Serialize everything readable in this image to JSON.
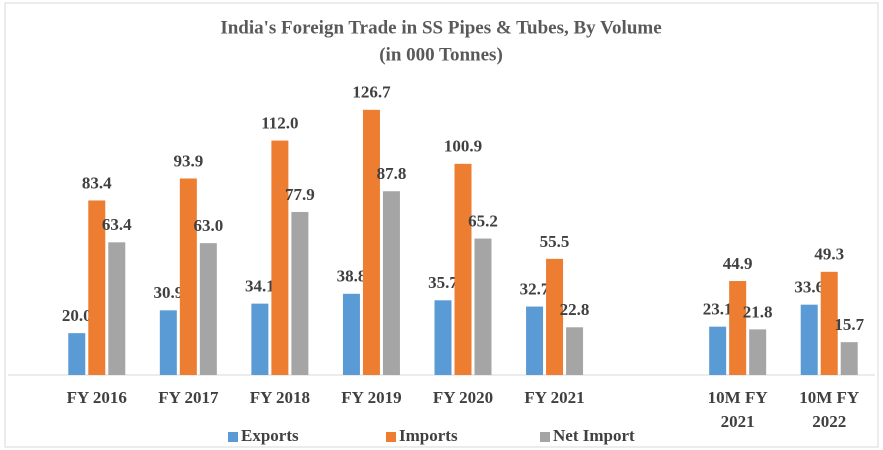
{
  "chart_data": {
    "type": "bar",
    "title": "India's Foreign Trade in SS Pipes & Tubes, By Volume",
    "subtitle": "(in 000 Tonnes)",
    "categories": [
      "FY 2016",
      "FY 2017",
      "FY 2018",
      "FY 2019",
      "FY 2020",
      "FY 2021",
      null,
      "10M FY 2021",
      "10M FY 2022"
    ],
    "ylim": [
      0,
      140
    ],
    "legend": "bottom",
    "series": [
      {
        "name": "Exports",
        "color": "#5b9bd5",
        "values": [
          20.0,
          30.9,
          34.1,
          38.8,
          35.7,
          32.7,
          null,
          23.1,
          33.6
        ],
        "value_labels": [
          "20.0",
          "30.9",
          "34.1",
          "38.8",
          "35.7",
          "32.7",
          null,
          "23.1",
          "33.6"
        ]
      },
      {
        "name": "Imports",
        "color": "#ed7d31",
        "values": [
          83.4,
          93.9,
          112.0,
          126.7,
          100.9,
          55.5,
          null,
          44.9,
          49.3
        ],
        "value_labels": [
          "83.4",
          "93.9",
          "112.0",
          "126.7",
          "100.9",
          "55.5",
          null,
          "44.9",
          "49.3"
        ]
      },
      {
        "name": "Net Import",
        "color": "#a5a5a5",
        "values": [
          63.4,
          63.0,
          77.9,
          87.8,
          65.2,
          22.8,
          null,
          21.8,
          15.7
        ],
        "value_labels": [
          "63.4",
          "63.0",
          "77.9",
          "87.8",
          "65.2",
          "22.8",
          null,
          "21.8",
          "15.7"
        ]
      }
    ]
  }
}
